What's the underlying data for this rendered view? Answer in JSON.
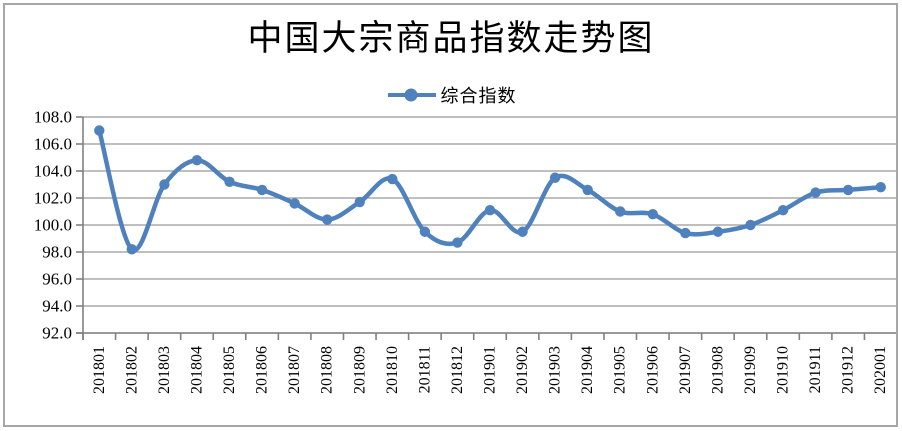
{
  "frame": {
    "background": "#ffffff",
    "border_color": "#a6a6a6"
  },
  "chart_data": {
    "type": "line",
    "title": "中国大宗商品指数走势图",
    "xlabel": "",
    "ylabel": "",
    "legend": {
      "position": "top-center",
      "entries": [
        {
          "label": "综合指数",
          "color": "#4f81bd",
          "marker": "circle"
        }
      ]
    },
    "categories": [
      "201801",
      "201802",
      "201803",
      "201804",
      "201805",
      "201806",
      "201807",
      "201808",
      "201809",
      "201810",
      "201811",
      "201812",
      "201901",
      "201902",
      "201903",
      "201904",
      "201905",
      "201906",
      "201907",
      "201908",
      "201909",
      "201910",
      "201911",
      "201912",
      "202001"
    ],
    "series": [
      {
        "name": "综合指数",
        "color": "#4f81bd",
        "smooth": true,
        "values": [
          107.0,
          98.2,
          103.0,
          104.8,
          103.2,
          102.6,
          101.6,
          100.4,
          101.7,
          103.4,
          99.5,
          98.7,
          101.1,
          99.5,
          103.5,
          102.6,
          101.0,
          100.8,
          99.4,
          99.5,
          100.0,
          101.1,
          102.4,
          102.6,
          102.8
        ]
      }
    ],
    "ylim": [
      92.0,
      108.0
    ],
    "y_ticks": [
      92.0,
      94.0,
      96.0,
      98.0,
      100.0,
      102.0,
      104.0,
      106.0,
      108.0
    ],
    "y_tick_decimals": 1,
    "x_labels_rotated_degrees": -90,
    "grid": "horizontal",
    "gridline_color": "#999999",
    "axis_color": "#808080"
  }
}
